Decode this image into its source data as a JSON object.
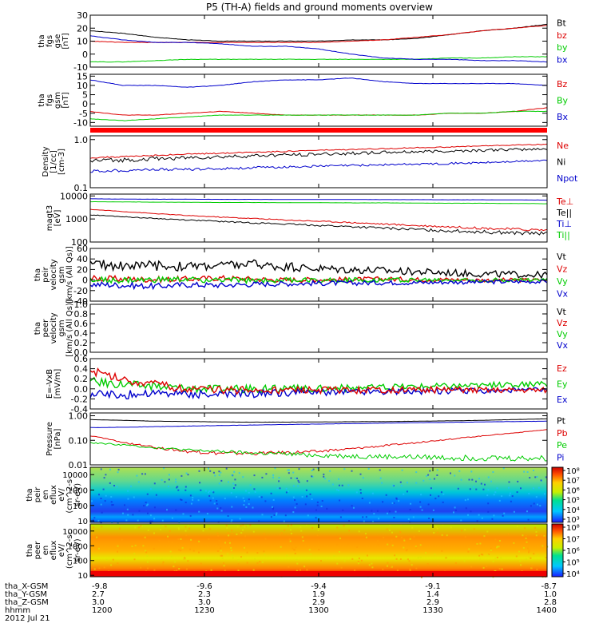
{
  "title": "P5 (TH-A) fields and ground moments overview",
  "colors": {
    "black": "#000000",
    "red": "#dd0000",
    "green": "#00cc00",
    "blue": "#0000cc"
  },
  "chart_data": [
    {
      "id": "fgs_gse",
      "type": "line",
      "ylabel": [
        "tha",
        "fgs",
        "gse",
        "[nT]"
      ],
      "ylim": [
        -10,
        30
      ],
      "yticks": [
        "30",
        "20",
        "10",
        "0",
        "-10"
      ],
      "ytickvals": [
        30,
        20,
        10,
        0,
        -10
      ],
      "legend": [
        "Bt",
        "bz",
        "by",
        "bx"
      ],
      "legend_colors": [
        "black",
        "red",
        "green",
        "blue"
      ],
      "series": [
        {
          "name": "Bt",
          "color": "black",
          "values": [
            18,
            16,
            13,
            11,
            10,
            10,
            10,
            10,
            11,
            11,
            12,
            15,
            18,
            20,
            23
          ]
        },
        {
          "name": "bz",
          "color": "red",
          "values": [
            10,
            9,
            9,
            9,
            9,
            9,
            9,
            9,
            10,
            11,
            13,
            15,
            18,
            20,
            22
          ]
        },
        {
          "name": "by",
          "color": "green",
          "values": [
            -6,
            -6,
            -5,
            -4,
            -4,
            -4,
            -4,
            -4,
            -4,
            -4,
            -4,
            -3,
            -3,
            -2,
            -2
          ]
        },
        {
          "name": "bx",
          "color": "blue",
          "values": [
            14,
            11,
            9,
            9,
            8,
            6,
            6,
            4,
            0,
            -3,
            -4,
            -4,
            -5,
            -5,
            -6
          ]
        }
      ]
    },
    {
      "id": "fgs_gsm",
      "type": "line",
      "ylabel": [
        "tha",
        "fgs",
        "gsm",
        "[nT]"
      ],
      "ylim": [
        -12,
        16
      ],
      "yticks": [
        "15",
        "10",
        "5",
        "0",
        "-5",
        "-10"
      ],
      "ytickvals": [
        15,
        10,
        5,
        0,
        -5,
        -10
      ],
      "legend": [
        "Bz",
        "By",
        "Bx"
      ],
      "legend_colors": [
        "red",
        "green",
        "blue"
      ],
      "series": [
        {
          "name": "Bz",
          "color": "red",
          "values": [
            -4,
            -6,
            -6,
            -5,
            -4,
            -5,
            -6,
            -6,
            -6,
            -6,
            -6,
            -5,
            -5,
            -4,
            -2
          ]
        },
        {
          "name": "By",
          "color": "green",
          "values": [
            -8,
            -9,
            -8,
            -7,
            -6,
            -6,
            -6,
            -6,
            -6,
            -6,
            -6,
            -5,
            -5,
            -4,
            -4
          ]
        },
        {
          "name": "Bx",
          "color": "blue",
          "values": [
            13,
            10,
            10,
            9,
            10,
            12,
            13,
            13,
            14,
            12,
            11,
            11,
            11,
            11,
            10
          ]
        }
      ]
    },
    {
      "id": "density",
      "type": "line",
      "scale": "log",
      "ylabel": [
        "Density",
        "[1/cc]",
        "[cm-3]"
      ],
      "ylim": [
        0.1,
        1.2
      ],
      "yticks": [
        "1.0",
        "0.1"
      ],
      "ytickvals": [
        1.0,
        0.1
      ],
      "legend": [
        "Ne",
        "Ni",
        "Npot"
      ],
      "legend_colors": [
        "red",
        "black",
        "blue"
      ],
      "series": [
        {
          "name": "Ne",
          "color": "red",
          "values": [
            0.42,
            0.44,
            0.47,
            0.5,
            0.52,
            0.55,
            0.57,
            0.6,
            0.62,
            0.65,
            0.68,
            0.7,
            0.74,
            0.77,
            0.8
          ]
        },
        {
          "name": "Ni",
          "color": "black",
          "values": [
            0.36,
            0.38,
            0.4,
            0.42,
            0.44,
            0.46,
            0.48,
            0.5,
            0.52,
            0.54,
            0.56,
            0.58,
            0.6,
            0.62,
            0.64
          ]
        },
        {
          "name": "Npot",
          "color": "blue",
          "values": [
            0.22,
            0.23,
            0.24,
            0.24,
            0.25,
            0.26,
            0.27,
            0.28,
            0.29,
            0.3,
            0.31,
            0.32,
            0.33,
            0.35,
            0.37
          ]
        }
      ]
    },
    {
      "id": "temperature",
      "type": "line",
      "scale": "log",
      "ylabel": [
        "magt3",
        "[eV]"
      ],
      "ylim": [
        100,
        12000
      ],
      "yticks": [
        "10000",
        "1000",
        "100"
      ],
      "ytickvals": [
        10000,
        1000,
        100
      ],
      "legend": [
        "Te⊥",
        "Te||",
        "Ti⊥",
        "Ti||"
      ],
      "legend_colors": [
        "red",
        "black",
        "blue",
        "green"
      ],
      "series": [
        {
          "name": "Ti⊥",
          "color": "blue",
          "values": [
            7500,
            7300,
            7200,
            7200,
            7100,
            7100,
            7000,
            7000,
            7000,
            6900,
            6900,
            6800,
            6800,
            6700,
            6600
          ]
        },
        {
          "name": "Ti||",
          "color": "green",
          "values": [
            5600,
            5500,
            5400,
            5300,
            5200,
            5200,
            5100,
            5100,
            5000,
            5000,
            4900,
            4800,
            4800,
            4700,
            4600
          ]
        },
        {
          "name": "Te⊥",
          "color": "red",
          "values": [
            2600,
            2100,
            1700,
            1400,
            1200,
            1050,
            900,
            800,
            700,
            600,
            520,
            460,
            400,
            360,
            330
          ]
        },
        {
          "name": "Te||",
          "color": "black",
          "values": [
            1500,
            1250,
            1050,
            900,
            780,
            680,
            600,
            530,
            460,
            400,
            350,
            310,
            280,
            250,
            230
          ]
        }
      ]
    },
    {
      "id": "peir_velocity",
      "type": "line",
      "ylabel": [
        "tha",
        "peir",
        "velocity",
        "gsm",
        "[km/s (All Qs)]"
      ],
      "ylim": [
        -40,
        60
      ],
      "yticks": [
        "60",
        "40",
        "20",
        "0",
        "-20",
        "-40"
      ],
      "ytickvals": [
        60,
        40,
        20,
        0,
        -20,
        -40
      ],
      "legend": [
        "Vt",
        "Vz",
        "Vy",
        "Vx"
      ],
      "legend_colors": [
        "black",
        "red",
        "green",
        "blue"
      ],
      "series": [
        {
          "name": "Vt",
          "color": "black",
          "values": [
            30,
            28,
            27,
            26,
            28,
            30,
            25,
            22,
            20,
            18,
            16,
            14,
            12,
            11,
            10
          ]
        },
        {
          "name": "Vz",
          "color": "red",
          "values": [
            3,
            2,
            1,
            2,
            4,
            2,
            0,
            1,
            1,
            2,
            1,
            1,
            0,
            0,
            0
          ]
        },
        {
          "name": "Vy",
          "color": "green",
          "values": [
            0,
            -1,
            0,
            1,
            0,
            -1,
            0,
            0,
            0,
            1,
            0,
            0,
            0,
            0,
            0
          ]
        },
        {
          "name": "Vx",
          "color": "blue",
          "values": [
            -8,
            -10,
            -12,
            -9,
            -10,
            -8,
            -7,
            -6,
            -6,
            -5,
            -5,
            -4,
            -4,
            -3,
            -3
          ]
        }
      ]
    },
    {
      "id": "peer_velocity",
      "type": "line",
      "ylabel": [
        "tha",
        "peer",
        "velocity",
        "gsm",
        "[km/s (All Qs)]"
      ],
      "ylim": [
        0,
        1
      ],
      "yticks": [
        "1.0",
        "0.8",
        "0.6",
        "0.4",
        "0.2",
        "0.0"
      ],
      "ytickvals": [
        1,
        0.8,
        0.6,
        0.4,
        0.2,
        0
      ],
      "legend": [
        "Vt",
        "Vz",
        "Vy",
        "Vx"
      ],
      "legend_colors": [
        "black",
        "red",
        "green",
        "blue"
      ],
      "series": []
    },
    {
      "id": "efield",
      "type": "line",
      "ylabel": [
        "E=-VxB",
        "[mV/m]"
      ],
      "ylim": [
        -0.4,
        0.6
      ],
      "yticks": [
        "0.6",
        "0.4",
        "0.2",
        "0.0",
        "-0.2",
        "-0.4"
      ],
      "ytickvals": [
        0.6,
        0.4,
        0.2,
        0,
        -0.2,
        -0.4
      ],
      "legend": [
        "Ez",
        "Ey",
        "Ex"
      ],
      "legend_colors": [
        "red",
        "green",
        "blue"
      ],
      "series": [
        {
          "name": "Ey",
          "color": "green",
          "values": [
            0.15,
            0.1,
            0.05,
            0.02,
            0.0,
            0.0,
            0.0,
            0.01,
            0.02,
            0.03,
            0.05,
            0.06,
            0.07,
            0.08,
            0.09
          ]
        },
        {
          "name": "Ex",
          "color": "blue",
          "values": [
            -0.1,
            -0.12,
            -0.08,
            -0.1,
            -0.12,
            -0.1,
            -0.08,
            -0.07,
            -0.06,
            -0.05,
            -0.05,
            -0.04,
            -0.04,
            -0.03,
            -0.03
          ]
        },
        {
          "name": "Ez",
          "color": "red",
          "values": [
            0.35,
            0.2,
            0.08,
            0.0,
            -0.02,
            -0.03,
            -0.03,
            -0.03,
            -0.03,
            -0.03,
            -0.02,
            -0.02,
            -0.02,
            -0.02,
            -0.02
          ]
        }
      ]
    },
    {
      "id": "pressure",
      "type": "line",
      "scale": "log",
      "ylabel": [
        "Pressure",
        "[nPa]"
      ],
      "ylim": [
        0.01,
        1.3
      ],
      "yticks": [
        "1.00",
        "0.10",
        "0.01"
      ],
      "ytickvals": [
        1.0,
        0.1,
        0.01
      ],
      "legend": [
        "Pt",
        "Pb",
        "Pe",
        "Pi"
      ],
      "legend_colors": [
        "black",
        "red",
        "green",
        "blue"
      ],
      "series": [
        {
          "name": "Pt",
          "color": "black",
          "values": [
            0.7,
            0.65,
            0.6,
            0.58,
            0.56,
            0.55,
            0.55,
            0.56,
            0.57,
            0.58,
            0.6,
            0.62,
            0.65,
            0.7,
            0.75
          ]
        },
        {
          "name": "Pi",
          "color": "blue",
          "values": [
            0.33,
            0.34,
            0.36,
            0.38,
            0.4,
            0.42,
            0.44,
            0.46,
            0.48,
            0.5,
            0.52,
            0.54,
            0.56,
            0.58,
            0.6
          ]
        },
        {
          "name": "Pb",
          "color": "red",
          "values": [
            0.15,
            0.08,
            0.05,
            0.035,
            0.03,
            0.03,
            0.032,
            0.035,
            0.045,
            0.06,
            0.08,
            0.11,
            0.15,
            0.2,
            0.27
          ]
        },
        {
          "name": "Pe",
          "color": "green",
          "values": [
            0.08,
            0.065,
            0.05,
            0.04,
            0.035,
            0.03,
            0.028,
            0.025,
            0.023,
            0.022,
            0.021,
            0.02,
            0.02,
            0.019,
            0.019
          ]
        }
      ]
    },
    {
      "id": "peir_spec",
      "type": "heatmap",
      "ylabel": [
        "tha",
        "peir",
        "en",
        "eflux",
        "eV/",
        "(cm^2-s-",
        "sr-eV)"
      ],
      "yticks": [
        "10000",
        "1000",
        "100",
        "10"
      ],
      "ytickvals": [
        10000,
        1000,
        100,
        10
      ],
      "colorbar_ticks": [
        "10⁸",
        "10⁷",
        "10⁶",
        "10⁵",
        "10⁴",
        "10³"
      ]
    },
    {
      "id": "peer_spec",
      "type": "heatmap",
      "ylabel": [
        "tha",
        "peer",
        "en",
        "eflux",
        "eV/",
        "(cm^2-s-",
        "sr-eV)"
      ],
      "yticks": [
        "10000",
        "1000",
        "100",
        "10"
      ],
      "ytickvals": [
        10000,
        1000,
        100,
        10
      ],
      "colorbar_ticks": [
        "10⁸",
        "10⁷",
        "10⁶",
        "10⁵",
        "10⁴"
      ]
    }
  ],
  "xaxis": {
    "ticks": [
      {
        "time": "1200",
        "x": "-9.8",
        "y": "2.7",
        "z": "3.0"
      },
      {
        "time": "1230",
        "x": "-9.6",
        "y": "2.3",
        "z": "3.0"
      },
      {
        "time": "1300",
        "x": "-9.4",
        "y": "1.9",
        "z": "2.9"
      },
      {
        "time": "1330",
        "x": "-9.1",
        "y": "1.4",
        "z": "2.9"
      },
      {
        "time": "1400",
        "x": "-8.7",
        "y": "1.0",
        "z": "2.8"
      }
    ],
    "row_labels": [
      "tha_X-GSM",
      "tha_Y-GSM",
      "tha_Z-GSM",
      "hhmm"
    ],
    "date": "2012 Jul 21"
  }
}
